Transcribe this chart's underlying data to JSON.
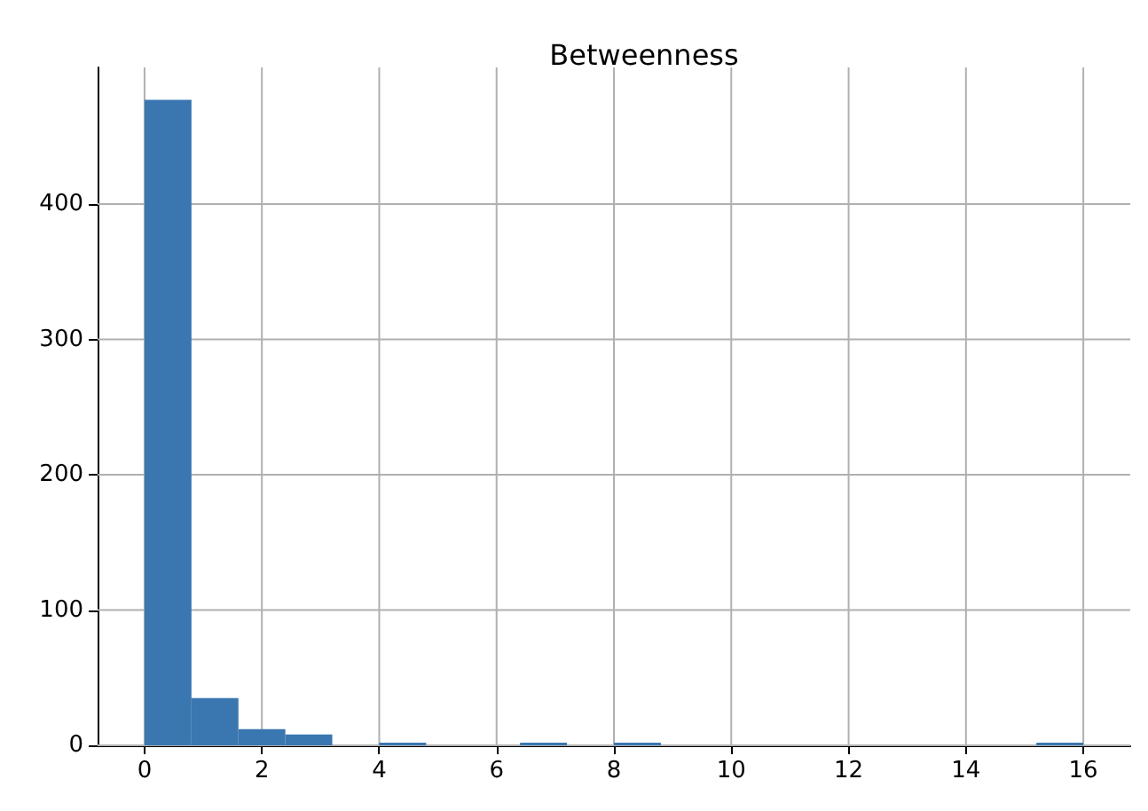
{
  "chart_data": {
    "type": "histogram",
    "title": "Betweenness",
    "bins": [
      0,
      0.8,
      1.6,
      2.4,
      3.2,
      4,
      4.8,
      5.6,
      6.4,
      7.2,
      8,
      8.8,
      9.6,
      10.4,
      11.2,
      12,
      12.8,
      13.6,
      14.4,
      15.2,
      16
    ],
    "values": [
      477,
      35,
      12,
      8,
      0,
      2,
      0,
      0,
      2,
      0,
      2,
      0,
      0,
      0,
      0,
      0,
      0,
      0,
      0,
      2
    ],
    "color": "#3a76af",
    "xlim": [
      -0.8,
      16.8
    ],
    "xticks": [
      0,
      2,
      4,
      6,
      8,
      10,
      12,
      14,
      16
    ],
    "ylim": [
      0,
      501
    ],
    "yticks": [
      0,
      100,
      200,
      300,
      400
    ],
    "grid": true
  }
}
